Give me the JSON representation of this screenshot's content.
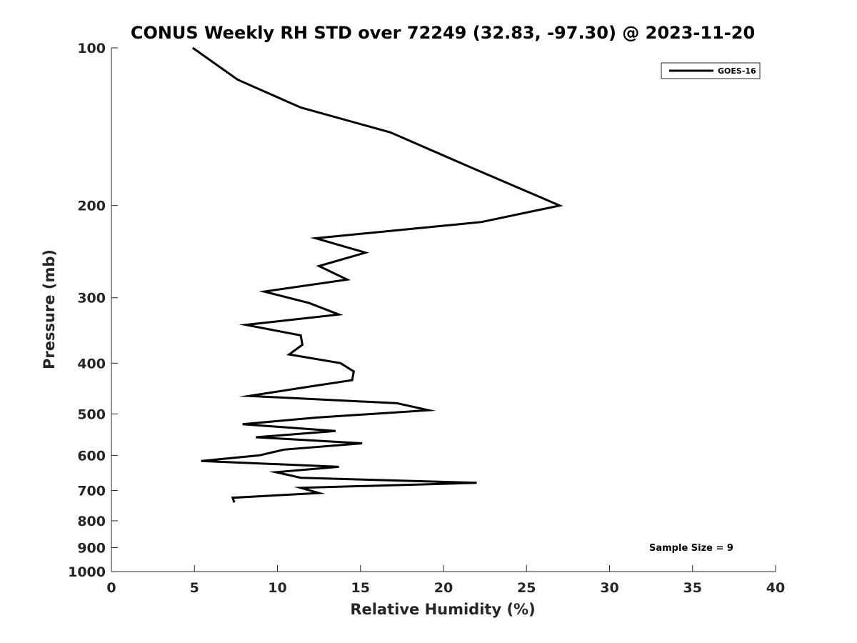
{
  "chart_data": {
    "type": "line",
    "title": "CONUS Weekly RH STD over 72249 (32.83, -97.30) @ 2023-11-20",
    "xlabel": "Relative Humidity (%)",
    "ylabel": "Pressure (mb)",
    "xlim": [
      0,
      40
    ],
    "ylim": [
      100,
      1000
    ],
    "y_scale": "log",
    "y_reversed": true,
    "x_ticks": [
      "0",
      "5",
      "10",
      "15",
      "20",
      "25",
      "30",
      "35",
      "40"
    ],
    "y_ticks": [
      "100",
      "200",
      "300",
      "400",
      "500",
      "600",
      "700",
      "800",
      "900",
      "1000"
    ],
    "grid": false,
    "legend_position": "top-right",
    "annotation": "Sample Size = 9",
    "series": [
      {
        "name": "GOES-16",
        "color": "#000000",
        "points": [
          [
            4.9,
            100
          ],
          [
            7.6,
            115
          ],
          [
            11.4,
            130
          ],
          [
            16.8,
            145
          ],
          [
            21.8,
            170
          ],
          [
            27.0,
            200
          ],
          [
            22.3,
            215
          ],
          [
            12.3,
            231
          ],
          [
            15.3,
            246
          ],
          [
            12.5,
            261
          ],
          [
            14.2,
            277
          ],
          [
            9.2,
            292
          ],
          [
            11.9,
            307
          ],
          [
            13.7,
            323
          ],
          [
            8.1,
            338
          ],
          [
            11.4,
            354
          ],
          [
            11.5,
            369
          ],
          [
            10.7,
            385
          ],
          [
            13.8,
            400
          ],
          [
            14.6,
            415
          ],
          [
            14.5,
            431
          ],
          [
            11.4,
            446
          ],
          [
            8.3,
            462
          ],
          [
            17.2,
            477
          ],
          [
            19.1,
            492
          ],
          [
            12.4,
            508
          ],
          [
            7.9,
            523
          ],
          [
            13.5,
            539
          ],
          [
            8.7,
            554
          ],
          [
            15.1,
            569
          ],
          [
            10.4,
            585
          ],
          [
            8.9,
            600
          ],
          [
            5.4,
            615
          ],
          [
            13.7,
            631
          ],
          [
            9.9,
            646
          ],
          [
            11.4,
            662
          ],
          [
            22.0,
            677
          ],
          [
            11.4,
            692
          ],
          [
            12.5,
            708
          ],
          [
            7.3,
            723
          ],
          [
            7.4,
            738
          ]
        ]
      }
    ]
  }
}
